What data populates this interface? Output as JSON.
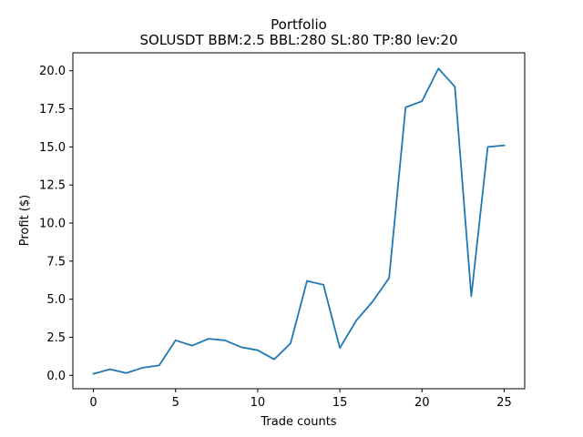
{
  "chart_data": {
    "type": "line",
    "title": "Portfolio",
    "subtitle": "SOLUSDT BBM:2.5 BBL:280 SL:80 TP:80 lev:20",
    "xlabel": "Trade counts",
    "ylabel": "Profit ($)",
    "xlim": [
      -1.25,
      26.25
    ],
    "ylim": [
      -0.88,
      21.18
    ],
    "x_ticks": [
      0,
      5,
      10,
      15,
      20,
      25
    ],
    "x_tick_labels": [
      "0",
      "5",
      "10",
      "15",
      "20",
      "25"
    ],
    "y_ticks": [
      0,
      2.5,
      5,
      7.5,
      10,
      12.5,
      15,
      17.5,
      20
    ],
    "y_tick_labels": [
      "0.0",
      "2.5",
      "5.0",
      "7.5",
      "10.0",
      "12.5",
      "15.0",
      "17.5",
      "20.0"
    ],
    "grid": false,
    "series": [
      {
        "color": "#1f77b4",
        "x": [
          0,
          1,
          2,
          3,
          4,
          5,
          6,
          7,
          8,
          9,
          10,
          11,
          12,
          13,
          14,
          15,
          16,
          17,
          18,
          19,
          20,
          21,
          22,
          23,
          24,
          25
        ],
        "values": [
          0.1,
          0.4,
          0.15,
          0.5,
          0.65,
          2.3,
          1.95,
          2.4,
          2.3,
          1.85,
          1.65,
          1.05,
          2.1,
          6.2,
          5.95,
          1.8,
          3.6,
          4.85,
          6.4,
          17.6,
          18.0,
          20.15,
          18.95,
          5.2,
          15.0,
          15.1
        ]
      }
    ]
  }
}
